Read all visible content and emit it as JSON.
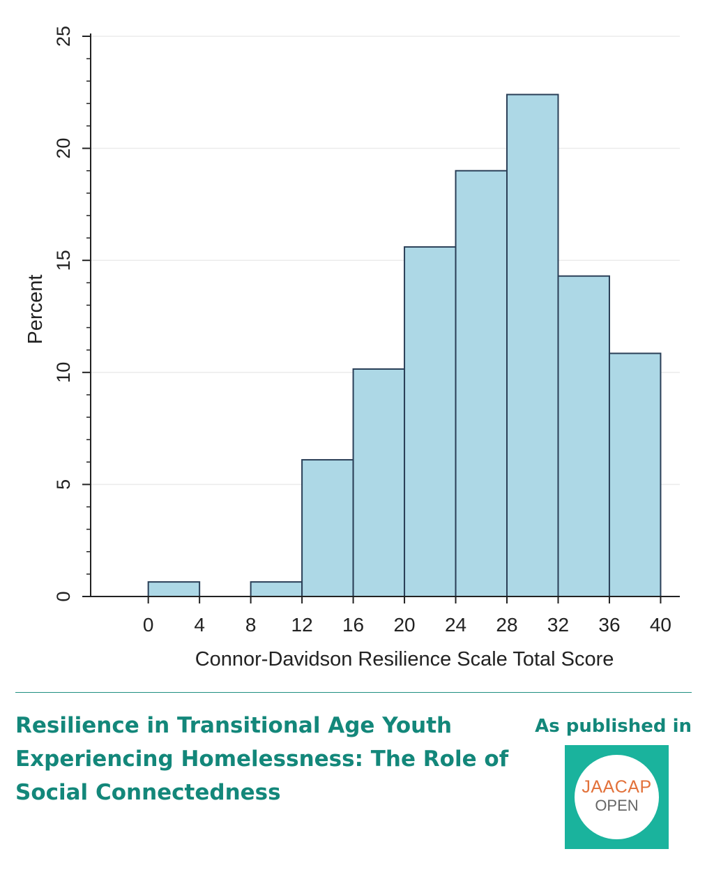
{
  "chart_data": {
    "type": "bar",
    "bins": [
      {
        "from": 0,
        "to": 4,
        "value": 0.65
      },
      {
        "from": 4,
        "to": 8,
        "value": 0
      },
      {
        "from": 8,
        "to": 12,
        "value": 0.65
      },
      {
        "from": 12,
        "to": 16,
        "value": 6.1
      },
      {
        "from": 16,
        "to": 20,
        "value": 10.15
      },
      {
        "from": 20,
        "to": 24,
        "value": 15.6
      },
      {
        "from": 24,
        "to": 28,
        "value": 19.0
      },
      {
        "from": 28,
        "to": 32,
        "value": 22.4
      },
      {
        "from": 32,
        "to": 36,
        "value": 14.3
      },
      {
        "from": 36,
        "to": 40,
        "value": 10.85
      }
    ],
    "xlabel": "Connor-Davidson Resilience Scale Total Score",
    "ylabel": "Percent",
    "xlim": [
      -4.5,
      41.5
    ],
    "ylim": [
      0,
      25
    ],
    "xticks": [
      "0",
      "4",
      "8",
      "12",
      "16",
      "20",
      "24",
      "28",
      "32",
      "36",
      "40"
    ],
    "yticks": [
      "0",
      "5",
      "10",
      "15",
      "20",
      "25"
    ],
    "grid": true,
    "bar_color": "#add8e6",
    "bar_edge_color": "#2a3f57"
  },
  "article": {
    "title": "Resilience in Transitional Age Youth Experiencing Homelessness: The Role of Social Connectedness"
  },
  "publication": {
    "label": "As published in",
    "logo_line1": "JAACAP",
    "logo_line2": "OPEN"
  },
  "colors": {
    "accent": "#13877a",
    "logo_bg": "#1ab39d",
    "logo_orange": "#e2713a"
  }
}
